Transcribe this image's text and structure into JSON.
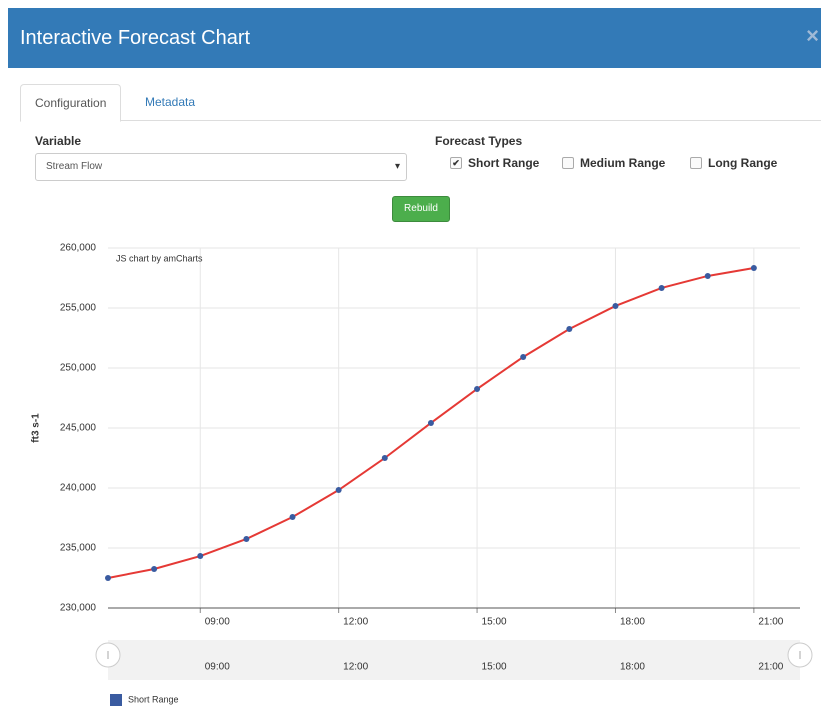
{
  "header": {
    "title": "Interactive Forecast Chart",
    "close": "×"
  },
  "tabs": [
    "Configuration",
    "Metadata"
  ],
  "form": {
    "variable_label": "Variable",
    "variable_value": "Stream Flow",
    "forecast_types_label": "Forecast Types",
    "forecast_types": [
      {
        "label": "Short Range",
        "checked": true
      },
      {
        "label": "Medium Range",
        "checked": false
      },
      {
        "label": "Long Range",
        "checked": false
      }
    ],
    "button": "Rebuild"
  },
  "chart_data": {
    "type": "line",
    "watermark": "JS chart by amCharts",
    "y_label": "ft3 s-1",
    "x": [
      "07:00",
      "08:00",
      "09:00",
      "10:00",
      "11:00",
      "12:00",
      "13:00",
      "14:00",
      "15:00",
      "16:00",
      "17:00",
      "18:00",
      "19:00",
      "20:00",
      "21:00"
    ],
    "series": [
      {
        "name": "Short Range",
        "color": "#e53935",
        "bullet_color": "#3a5ba0",
        "values": [
          232500,
          233250,
          234330,
          235750,
          237580,
          239830,
          242500,
          245420,
          248250,
          250920,
          253250,
          255170,
          256670,
          257670,
          258330
        ]
      }
    ],
    "xlim": [
      "07:00",
      "22:00"
    ],
    "xticks": [
      "09:00",
      "12:00",
      "15:00",
      "18:00",
      "21:00"
    ],
    "ylim": [
      230000,
      260000
    ],
    "yticks": [
      {
        "value": 230000,
        "label": "230,000"
      },
      {
        "value": 235000,
        "label": "235,000"
      },
      {
        "value": 240000,
        "label": "240,000"
      },
      {
        "value": 245000,
        "label": "245,000"
      },
      {
        "value": 250000,
        "label": "250,000"
      },
      {
        "value": 255000,
        "label": "255,000"
      },
      {
        "value": 260000,
        "label": "260,000"
      }
    ],
    "grid": true,
    "scrollbar": true,
    "legend": "bottom-left"
  }
}
